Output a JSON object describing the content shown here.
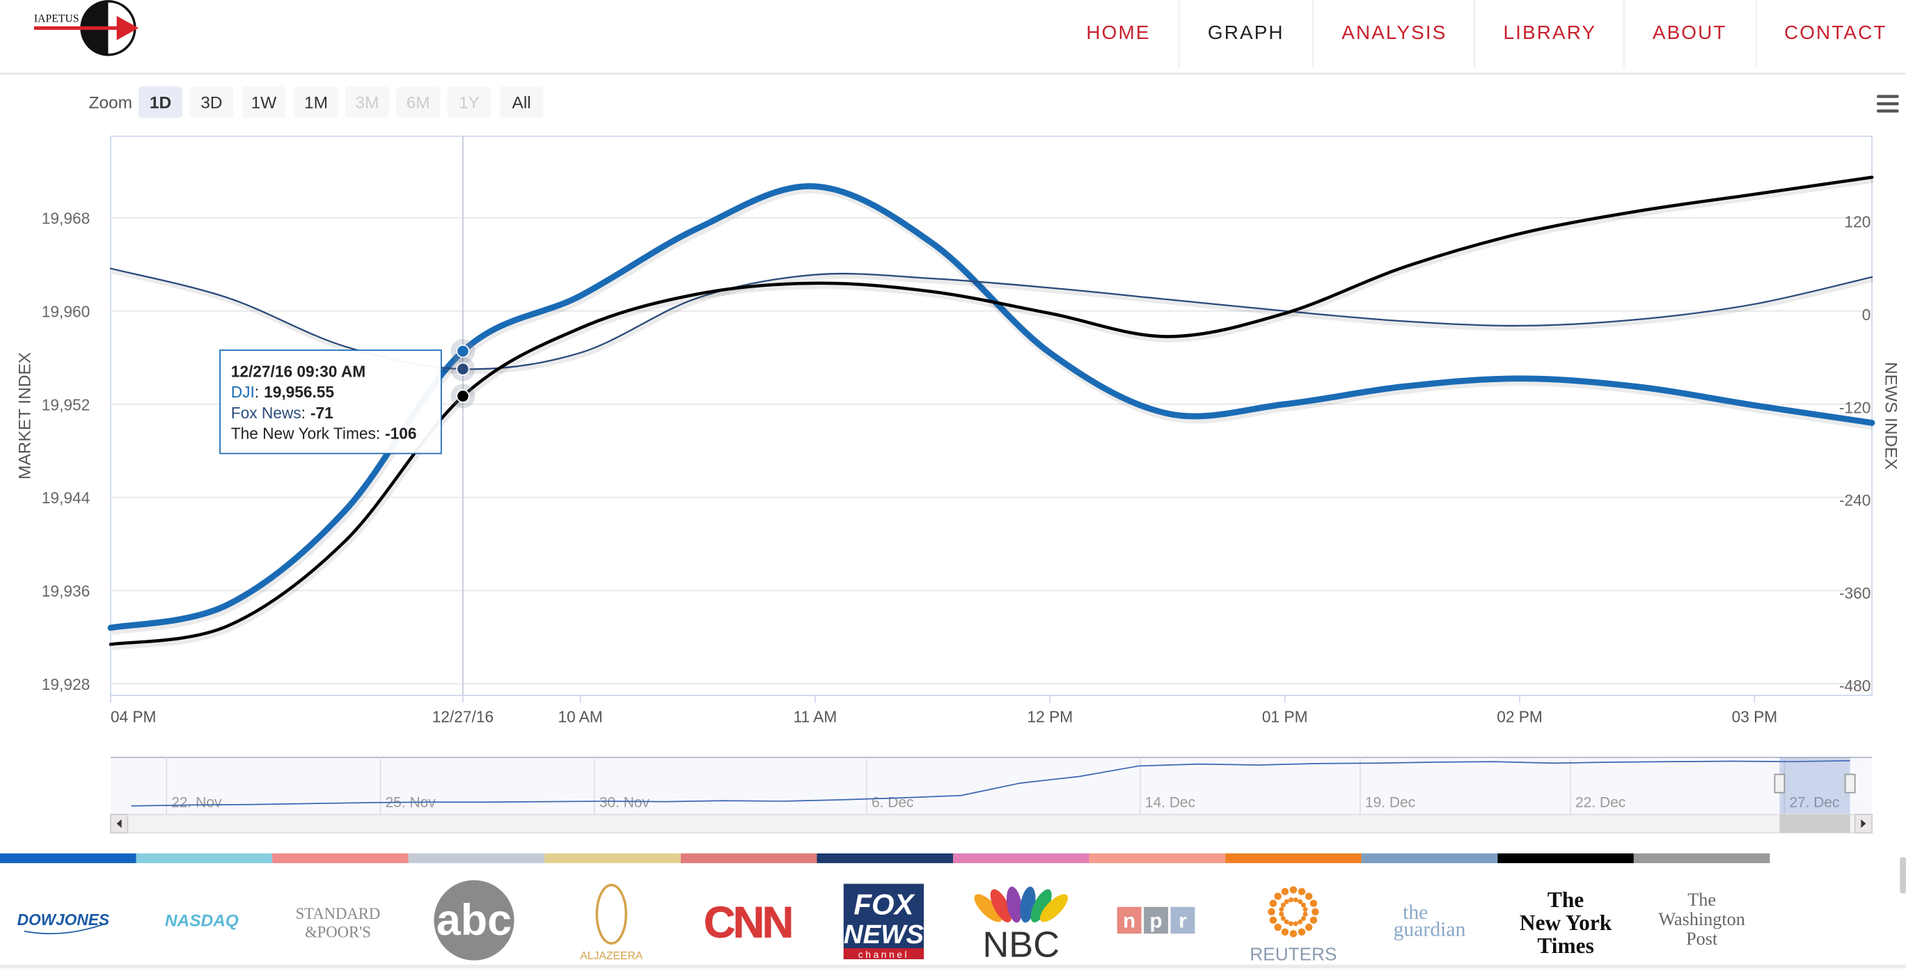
{
  "header": {
    "logo": "IAPETUS",
    "nav": [
      "HOME",
      "GRAPH",
      "ANALYSIS",
      "LIBRARY",
      "ABOUT",
      "CONTACT"
    ],
    "nav_active": 1
  },
  "zoom": {
    "label": "Zoom",
    "buttons": [
      "1D",
      "3D",
      "1W",
      "1M",
      "3M",
      "6M",
      "1Y",
      "All"
    ],
    "selected": 0,
    "disabled": [
      4,
      5,
      6
    ]
  },
  "chart_data": {
    "type": "line",
    "smooth": true,
    "grid": true,
    "y_label": "MARKET INDEX",
    "y2_label": "NEWS INDEX",
    "x": [
      8,
      8.5,
      9,
      9.5,
      10,
      10.5,
      11,
      11.5,
      12,
      12.5,
      13,
      13.5,
      14,
      14.5,
      15,
      15.5
    ],
    "xlim": [
      8,
      15.5
    ],
    "xticks": [
      {
        "value": 8,
        "label": "04 PM"
      },
      {
        "value": 9.5,
        "label": "12/27/16"
      },
      {
        "value": 10,
        "label": "10 AM"
      },
      {
        "value": 11,
        "label": "11 AM"
      },
      {
        "value": 12,
        "label": "12 PM"
      },
      {
        "value": 13,
        "label": "01 PM"
      },
      {
        "value": 14,
        "label": "02 PM"
      },
      {
        "value": 15,
        "label": "03 PM"
      }
    ],
    "ylim": [
      19927,
      19975
    ],
    "yticks": [
      {
        "value": 19928,
        "label": "19,928"
      },
      {
        "value": 19936,
        "label": "19,936"
      },
      {
        "value": 19944,
        "label": "19,944"
      },
      {
        "value": 19952,
        "label": "19,952"
      },
      {
        "value": 19960,
        "label": "19,960"
      },
      {
        "value": 19968,
        "label": "19,968"
      }
    ],
    "y2lim": [
      -493,
      230
    ],
    "y2ticks": [
      -480,
      -360,
      -240,
      -120,
      0,
      120
    ],
    "series": [
      {
        "name": "DJI",
        "color": "#1a6bb5",
        "width": 5,
        "values": [
          19932.8,
          19934.8,
          19942.9,
          19956.55,
          19961.3,
          19967.1,
          19970.7,
          19965.8,
          19956.4,
          19951.2,
          19952.0,
          19953.5,
          19954.2,
          19953.5,
          19951.9,
          19950.4
        ]
      },
      {
        "name": "Fox News",
        "color": "#2b4a7a",
        "width": 1.3,
        "axis": "y2",
        "values": [
          59,
          21,
          -42,
          -71,
          -50,
          21,
          51,
          46,
          34,
          19,
          4,
          -9,
          -15,
          -7,
          13,
          48
        ]
      },
      {
        "name": "The New York Times",
        "color": "#000000",
        "width": 2.6,
        "axis": "y2",
        "values": [
          -427,
          -403,
          -293,
          -106,
          -18,
          26,
          40,
          29,
          1,
          -29,
          1,
          60,
          104,
          133,
          155,
          177
        ]
      }
    ],
    "crosshair_x": 9.5,
    "tooltip": {
      "title": "12/27/16 09:30 AM",
      "separator": ":",
      "value_labels": [
        "19,956.55",
        "-71",
        "-106"
      ]
    },
    "navigator": {
      "labels": [
        "22. Nov",
        "25. Nov",
        "30. Nov",
        "6. Dec",
        "14. Dec",
        "19. Dec",
        "22. Dec",
        "27. Dec"
      ],
      "ylim": [
        18800,
        20000
      ],
      "color": "#3a67b0",
      "values": [
        18980,
        19000,
        19010,
        19030,
        19050,
        19060,
        19060,
        19070,
        19080,
        19070,
        19090,
        19080,
        19110,
        19150,
        19200,
        19460,
        19600,
        19820,
        19860,
        19840,
        19870,
        19880,
        19900,
        19910,
        19880,
        19900,
        19910,
        19920,
        19910,
        19930
      ]
    }
  },
  "sources": [
    {
      "lines": [
        "DOWJONES"
      ],
      "color": "#1a5aa6",
      "bar": "#1565c0"
    },
    {
      "lines": [
        "NASDAQ"
      ],
      "color": "#5bb8d8",
      "bar": "#85cfe0"
    },
    {
      "lines": [
        "STANDARD",
        "&POOR'S"
      ],
      "color": "#888888",
      "bar": "#f28b8b"
    },
    {
      "lines": [
        "abc"
      ],
      "color": "#ffffff",
      "bar": "#c5cbd6"
    },
    {
      "lines": [
        "ALJAZEERA"
      ],
      "color": "#d4a24a",
      "bar": "#e3d08f"
    },
    {
      "lines": [
        "CNN"
      ],
      "color": "#d83a3a",
      "bar": "#e07b7b"
    },
    {
      "lines": [
        "FOX",
        "NEWS",
        "channel"
      ],
      "color": "#ffffff",
      "bar": "#1e3a6e"
    },
    {
      "lines": [
        "NBC"
      ],
      "color": "#333333",
      "bar": "#e07fb6"
    },
    {
      "lines": [
        "n",
        "p",
        "r"
      ],
      "color": "#ffffff",
      "bar": "#f59c8c"
    },
    {
      "lines": [
        "REUTERS"
      ],
      "color": "#8a9bb0",
      "bar": "#f07f22"
    },
    {
      "lines": [
        "the",
        "guardian"
      ],
      "color": "#8aa8c8",
      "bar": "#7a9ec2"
    },
    {
      "lines": [
        "The",
        "New York",
        "Times"
      ],
      "color": "#111111",
      "bar": "#000000"
    },
    {
      "lines": [
        "The",
        "Washington",
        "Post"
      ],
      "color": "#666666",
      "bar": "#999999"
    }
  ]
}
